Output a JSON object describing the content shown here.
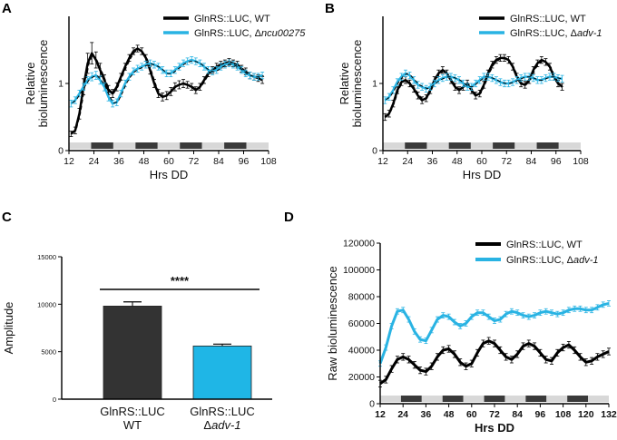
{
  "colors": {
    "wt": "#000000",
    "mutant": "#29b3e3",
    "dark_bar": "#3a3a3a",
    "light_bar": "#d8d8d8",
    "bar_c1": "#333333",
    "bar_c2": "#1fb6e6"
  },
  "chart_data": [
    {
      "panel": "A",
      "type": "line",
      "title": "",
      "xlabel": "Hrs DD",
      "ylabel_lines": [
        "Relative",
        "bioluminescence"
      ],
      "xlim": [
        12,
        108
      ],
      "ylim": [
        0,
        2
      ],
      "xticks": [
        "12",
        "24",
        "36",
        "48",
        "60",
        "72",
        "84",
        "96",
        "108"
      ],
      "yticks": [
        "0",
        "1"
      ],
      "light_dark_bar": [
        0,
        1,
        0,
        1,
        0,
        1,
        0,
        1,
        0
      ],
      "series": [
        {
          "name": "GlnRS::LUC, WT",
          "legend_prefix": "GlnRS::LUC, WT",
          "legend_italic": "",
          "color_key": "wt",
          "x": [
            13,
            15,
            17,
            19,
            21,
            23,
            25,
            27,
            29,
            31,
            33,
            35,
            37,
            39,
            41,
            43,
            45,
            47,
            49,
            51,
            53,
            55,
            57,
            59,
            61,
            63,
            65,
            67,
            69,
            71,
            73,
            75,
            77,
            79,
            81,
            83,
            85,
            87,
            89,
            91,
            93,
            95,
            97,
            99,
            101,
            103,
            105
          ],
          "y": [
            0.25,
            0.3,
            0.55,
            0.95,
            1.3,
            1.45,
            1.35,
            1.2,
            1.05,
            0.9,
            0.85,
            0.95,
            1.1,
            1.25,
            1.38,
            1.48,
            1.52,
            1.48,
            1.38,
            1.2,
            1.0,
            0.85,
            0.8,
            0.82,
            0.88,
            0.95,
            0.98,
            1.0,
            0.98,
            0.95,
            0.9,
            0.95,
            1.05,
            1.15,
            1.2,
            1.25,
            1.28,
            1.3,
            1.32,
            1.3,
            1.28,
            1.22,
            1.18,
            1.12,
            1.1,
            1.08,
            1.05
          ],
          "err": [
            0.04,
            0.05,
            0.08,
            0.12,
            0.15,
            0.16,
            0.12,
            0.1,
            0.08,
            0.07,
            0.06,
            0.06,
            0.05,
            0.05,
            0.05,
            0.05,
            0.05,
            0.05,
            0.05,
            0.06,
            0.06,
            0.06,
            0.06,
            0.06,
            0.06,
            0.06,
            0.06,
            0.06,
            0.05,
            0.05,
            0.05,
            0.05,
            0.05,
            0.05,
            0.05,
            0.05,
            0.05,
            0.05,
            0.05,
            0.05,
            0.05,
            0.05,
            0.05,
            0.05,
            0.05,
            0.05,
            0.05
          ]
        },
        {
          "name": "GlnRS::LUC, Δncu00275",
          "legend_prefix": "GlnRS::LUC, Δ",
          "legend_italic": "ncu00275",
          "color_key": "mutant",
          "x": [
            13,
            15,
            17,
            19,
            21,
            23,
            25,
            27,
            29,
            31,
            33,
            35,
            37,
            39,
            41,
            43,
            45,
            47,
            49,
            51,
            53,
            55,
            57,
            59,
            61,
            63,
            65,
            67,
            69,
            71,
            73,
            75,
            77,
            79,
            81,
            83,
            85,
            87,
            89,
            91,
            93,
            95,
            97,
            99,
            101,
            103,
            105
          ],
          "y": [
            0.7,
            0.75,
            0.85,
            0.95,
            1.05,
            1.1,
            1.12,
            1.05,
            0.95,
            0.8,
            0.7,
            0.72,
            0.85,
            1.0,
            1.1,
            1.18,
            1.22,
            1.25,
            1.28,
            1.3,
            1.28,
            1.25,
            1.2,
            1.15,
            1.15,
            1.2,
            1.25,
            1.3,
            1.33,
            1.35,
            1.33,
            1.3,
            1.25,
            1.2,
            1.18,
            1.2,
            1.25,
            1.28,
            1.3,
            1.28,
            1.25,
            1.2,
            1.15,
            1.12,
            1.1,
            1.1,
            1.12
          ],
          "err": [
            0.05,
            0.05,
            0.05,
            0.05,
            0.05,
            0.06,
            0.06,
            0.06,
            0.06,
            0.06,
            0.05,
            0.05,
            0.05,
            0.05,
            0.05,
            0.05,
            0.05,
            0.05,
            0.05,
            0.05,
            0.05,
            0.05,
            0.05,
            0.05,
            0.05,
            0.05,
            0.05,
            0.05,
            0.05,
            0.05,
            0.05,
            0.05,
            0.05,
            0.05,
            0.05,
            0.05,
            0.05,
            0.05,
            0.05,
            0.05,
            0.05,
            0.05,
            0.05,
            0.05,
            0.05,
            0.05,
            0.05
          ]
        }
      ]
    },
    {
      "panel": "B",
      "type": "line",
      "title": "",
      "xlabel": "Hrs DD",
      "ylabel_lines": [
        "Relative",
        "bioluminescence"
      ],
      "xlim": [
        12,
        108
      ],
      "ylim": [
        0,
        2
      ],
      "xticks": [
        "12",
        "24",
        "36",
        "48",
        "60",
        "72",
        "84",
        "96",
        "108"
      ],
      "yticks": [
        "0",
        "1"
      ],
      "light_dark_bar": [
        0,
        1,
        0,
        1,
        0,
        1,
        0,
        1,
        0
      ],
      "series": [
        {
          "name": "GlnRS::LUC, WT",
          "legend_prefix": "GlnRS::LUC, WT",
          "legend_italic": "",
          "color_key": "wt",
          "x": [
            13,
            15,
            17,
            19,
            21,
            23,
            25,
            27,
            29,
            31,
            33,
            35,
            37,
            39,
            41,
            43,
            45,
            47,
            49,
            51,
            53,
            55,
            57,
            59,
            61,
            63,
            65,
            67,
            69,
            71,
            73,
            75,
            77,
            79,
            81,
            83,
            85,
            87,
            89,
            91,
            93,
            95,
            97,
            99
          ],
          "y": [
            0.5,
            0.55,
            0.7,
            0.9,
            1.02,
            1.05,
            1.0,
            0.92,
            0.82,
            0.75,
            0.78,
            0.9,
            1.05,
            1.15,
            1.2,
            1.15,
            1.05,
            0.95,
            0.9,
            0.95,
            1.0,
            0.9,
            0.82,
            0.85,
            0.98,
            1.15,
            1.28,
            1.35,
            1.38,
            1.38,
            1.35,
            1.25,
            1.1,
            1.0,
            0.98,
            1.05,
            1.2,
            1.3,
            1.35,
            1.32,
            1.25,
            1.1,
            1.0,
            0.95
          ],
          "err": [
            0.05,
            0.05,
            0.05,
            0.05,
            0.05,
            0.05,
            0.05,
            0.05,
            0.05,
            0.05,
            0.05,
            0.05,
            0.05,
            0.05,
            0.05,
            0.05,
            0.05,
            0.05,
            0.05,
            0.05,
            0.05,
            0.05,
            0.05,
            0.05,
            0.05,
            0.05,
            0.05,
            0.05,
            0.05,
            0.05,
            0.05,
            0.05,
            0.05,
            0.05,
            0.05,
            0.05,
            0.05,
            0.05,
            0.05,
            0.05,
            0.05,
            0.05,
            0.05,
            0.05
          ]
        },
        {
          "name": "GlnRS::LUC, Δadv-1",
          "legend_prefix": "GlnRS::LUC, Δ",
          "legend_italic": "adv-1",
          "color_key": "mutant",
          "x": [
            13,
            15,
            17,
            19,
            21,
            23,
            25,
            27,
            29,
            31,
            33,
            35,
            37,
            39,
            41,
            43,
            45,
            47,
            49,
            51,
            53,
            55,
            57,
            59,
            61,
            63,
            65,
            67,
            69,
            71,
            73,
            75,
            77,
            79,
            81,
            83,
            85,
            87,
            89,
            91,
            93,
            95,
            97,
            99
          ],
          "y": [
            0.75,
            0.8,
            0.9,
            1.02,
            1.1,
            1.15,
            1.12,
            1.05,
            0.98,
            0.95,
            0.92,
            0.95,
            1.0,
            1.05,
            1.08,
            1.1,
            1.1,
            1.08,
            1.05,
            1.0,
            0.95,
            0.95,
            1.0,
            1.05,
            1.1,
            1.1,
            1.08,
            1.05,
            1.02,
            1.0,
            1.0,
            1.02,
            1.05,
            1.08,
            1.1,
            1.1,
            1.08,
            1.05,
            1.05,
            1.08,
            1.1,
            1.1,
            1.08,
            1.07
          ],
          "err": [
            0.05,
            0.05,
            0.05,
            0.05,
            0.05,
            0.05,
            0.05,
            0.05,
            0.05,
            0.05,
            0.05,
            0.05,
            0.05,
            0.05,
            0.05,
            0.05,
            0.05,
            0.05,
            0.05,
            0.05,
            0.05,
            0.05,
            0.05,
            0.05,
            0.05,
            0.05,
            0.05,
            0.05,
            0.05,
            0.05,
            0.05,
            0.05,
            0.05,
            0.05,
            0.05,
            0.05,
            0.05,
            0.05,
            0.05,
            0.05,
            0.05,
            0.05,
            0.05,
            0.05
          ]
        }
      ]
    },
    {
      "panel": "C",
      "type": "bar",
      "title": "",
      "xlabel": "",
      "ylabel": "Amplitude",
      "ylim": [
        0,
        15000
      ],
      "yticks": [
        "0",
        "5000",
        "10000",
        "15000"
      ],
      "categories": [
        {
          "line1": "GlnRS::LUC",
          "line2_prefix": "WT",
          "line2_italic": "",
          "color_key": "bar_c1"
        },
        {
          "line1": "GlnRS::LUC",
          "line2_prefix": "Δ",
          "line2_italic": "adv-1",
          "color_key": "bar_c2"
        }
      ],
      "values": [
        9800,
        5600
      ],
      "errors": [
        450,
        200
      ],
      "significance": "****"
    },
    {
      "panel": "D",
      "type": "line",
      "title": "",
      "xlabel": "Hrs DD",
      "ylabel": "Raw bioluminescence",
      "xlim": [
        12,
        132
      ],
      "ylim": [
        0,
        120000
      ],
      "xticks": [
        "12",
        "24",
        "36",
        "48",
        "60",
        "72",
        "84",
        "96",
        "108",
        "120",
        "132"
      ],
      "yticks": [
        "0",
        "20000",
        "40000",
        "60000",
        "80000",
        "100000",
        "120000"
      ],
      "light_dark_bar": [
        0,
        1,
        0,
        1,
        0,
        1,
        0,
        1,
        0,
        1,
        0
      ],
      "series": [
        {
          "name": "GlnRS::LUC, WT",
          "legend_prefix": "GlnRS::LUC, WT",
          "legend_italic": "",
          "color_key": "wt",
          "x": [
            12,
            15,
            18,
            21,
            24,
            27,
            30,
            33,
            36,
            39,
            42,
            45,
            48,
            51,
            54,
            57,
            60,
            63,
            66,
            69,
            72,
            75,
            78,
            81,
            84,
            87,
            90,
            93,
            96,
            99,
            102,
            105,
            108,
            111,
            114,
            117,
            120,
            123,
            126,
            129,
            132
          ],
          "y": [
            15000,
            18000,
            26000,
            33000,
            35000,
            33000,
            29000,
            25000,
            24000,
            28000,
            35000,
            40000,
            41000,
            37000,
            31000,
            28000,
            30000,
            38000,
            45000,
            47000,
            45000,
            40000,
            35000,
            33000,
            37000,
            43000,
            45000,
            43000,
            38000,
            33000,
            32000,
            38000,
            42000,
            44000,
            40000,
            35000,
            31000,
            32000,
            35000,
            37000,
            39000
          ],
          "err": [
            2500,
            2500,
            2500,
            2500,
            2500,
            2500,
            2500,
            2500,
            2500,
            2500,
            2500,
            2500,
            2500,
            2500,
            2500,
            2500,
            2500,
            2500,
            2500,
            2500,
            2500,
            2500,
            2500,
            2500,
            2500,
            2500,
            2500,
            2500,
            2500,
            2500,
            2500,
            2500,
            2500,
            2500,
            2500,
            2500,
            2500,
            2500,
            2500,
            2500,
            2500
          ]
        },
        {
          "name": "GlnRS::LUC, Δadv-1",
          "legend_prefix": "GlnRS::LUC, Δ",
          "legend_italic": "adv-1",
          "color_key": "mutant",
          "x": [
            12,
            15,
            18,
            21,
            24,
            27,
            30,
            33,
            36,
            39,
            42,
            45,
            48,
            51,
            54,
            57,
            60,
            63,
            66,
            69,
            72,
            75,
            78,
            81,
            84,
            87,
            90,
            93,
            96,
            99,
            102,
            105,
            108,
            111,
            114,
            117,
            120,
            123,
            126,
            129,
            132
          ],
          "y": [
            30000,
            42000,
            58000,
            69000,
            70000,
            63000,
            54000,
            48000,
            47000,
            55000,
            63000,
            66000,
            65000,
            61000,
            58000,
            60000,
            65000,
            68000,
            68000,
            65000,
            62000,
            63000,
            67000,
            69000,
            68000,
            66000,
            65000,
            66000,
            68000,
            69000,
            68000,
            67000,
            68000,
            70000,
            71000,
            71000,
            70000,
            70000,
            72000,
            74000,
            75000
          ],
          "err": [
            2000,
            2000,
            2000,
            2000,
            2000,
            2000,
            2000,
            2000,
            2000,
            2000,
            2000,
            2000,
            2000,
            2000,
            2000,
            2000,
            2000,
            2000,
            2000,
            2000,
            2000,
            2000,
            2000,
            2000,
            2000,
            2000,
            2000,
            2000,
            2000,
            2000,
            2000,
            2000,
            2000,
            2000,
            2000,
            2000,
            2000,
            2000,
            2000,
            2000,
            2000
          ]
        }
      ]
    }
  ],
  "panel_labels": [
    "A",
    "B",
    "C",
    "D"
  ]
}
